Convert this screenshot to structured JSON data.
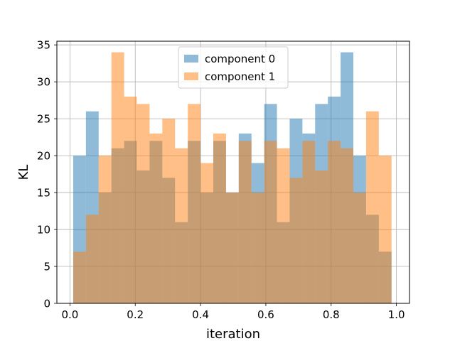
{
  "chart_data": {
    "type": "bar",
    "title": "",
    "xlabel": "iteration",
    "ylabel": "KL",
    "xlim": [
      -0.04,
      1.04
    ],
    "ylim": [
      0,
      35.5
    ],
    "x_ticks": [
      "0.0",
      "0.2",
      "0.4",
      "0.6",
      "0.8",
      "1.0"
    ],
    "y_ticks": [
      "0",
      "5",
      "10",
      "15",
      "20",
      "25",
      "30",
      "35"
    ],
    "grid": true,
    "legend_position": "upper center",
    "bin_edges": [
      0.01,
      0.049,
      0.088,
      0.127,
      0.166,
      0.205,
      0.244,
      0.283,
      0.322,
      0.361,
      0.4,
      0.439,
      0.478,
      0.517,
      0.556,
      0.595,
      0.634,
      0.673,
      0.712,
      0.751,
      0.79,
      0.829,
      0.868,
      0.907,
      0.946,
      0.985
    ],
    "series": [
      {
        "name": "component 0",
        "color": "#1f77b4",
        "alpha": 0.5,
        "values": [
          20,
          26,
          15,
          21,
          22,
          18,
          22,
          17,
          11,
          22,
          15,
          22,
          15,
          23,
          19,
          27,
          11,
          25,
          23,
          27,
          28,
          34,
          20,
          12,
          7
        ]
      },
      {
        "name": "component 1",
        "color": "#ff7f0e",
        "alpha": 0.5,
        "values": [
          7,
          12,
          20,
          34,
          28,
          27,
          23,
          25,
          21,
          27,
          19,
          23,
          15,
          22,
          15,
          22,
          21,
          17,
          22,
          18,
          22,
          21,
          15,
          26,
          20
        ]
      }
    ]
  }
}
